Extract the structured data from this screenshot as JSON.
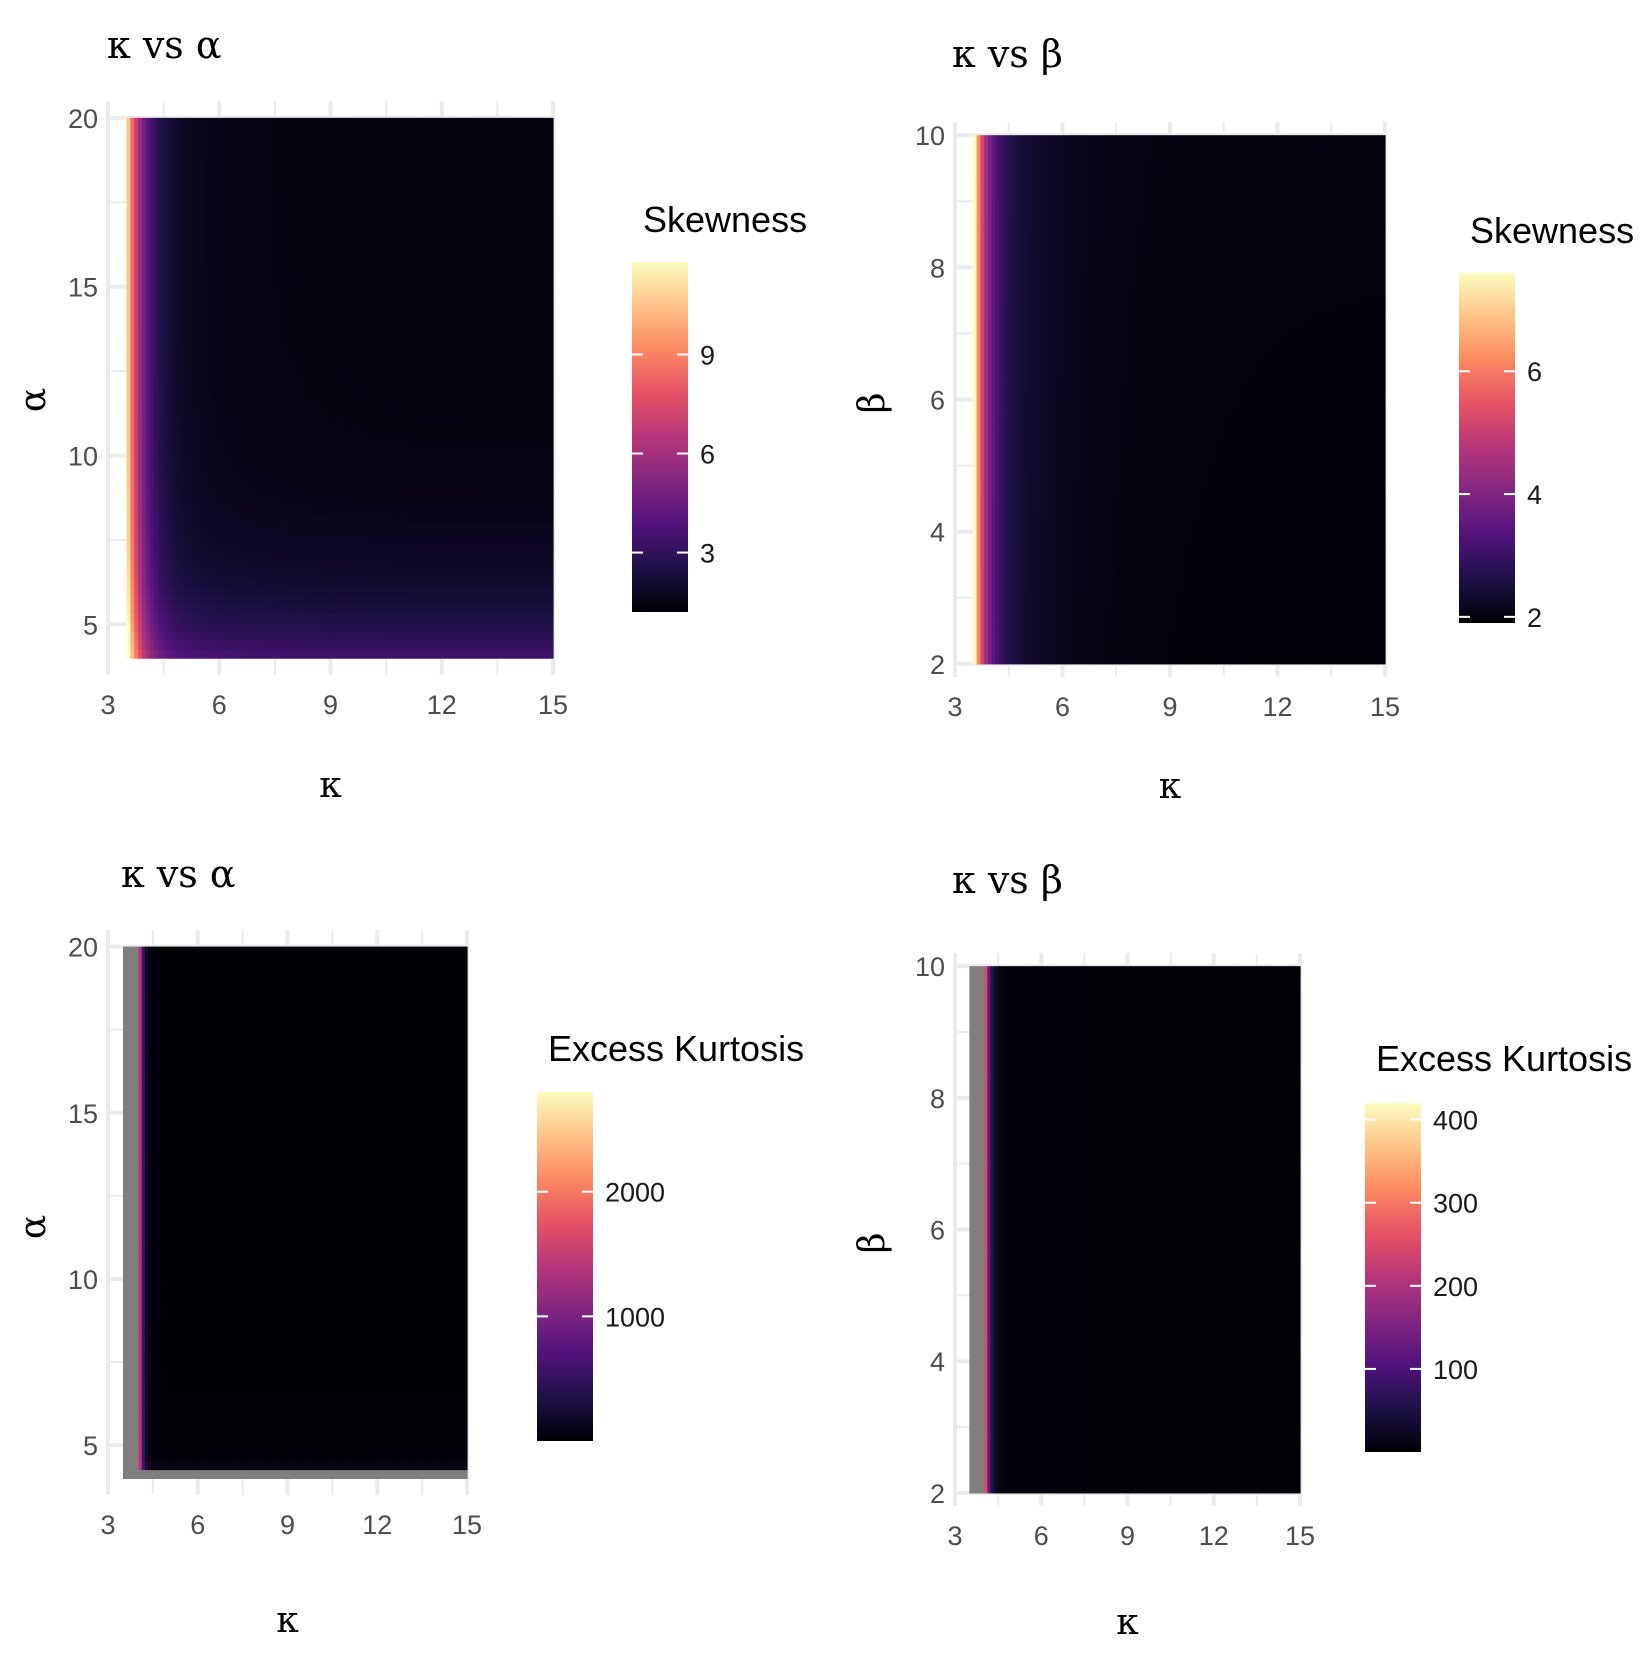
{
  "chart_data": [
    {
      "type": "heatmap",
      "title": "κ vs α",
      "xlabel": "κ",
      "ylabel": "α",
      "xlim": [
        3,
        15
      ],
      "ylim": [
        3.5,
        20.5
      ],
      "x_ticks": [
        3,
        6,
        9,
        12,
        15
      ],
      "y_ticks": [
        5,
        10,
        15,
        20
      ],
      "x_range": [
        3.5,
        15
      ],
      "y_range": [
        4,
        20
      ],
      "na_band_x": [],
      "fill": {
        "legend_title": "Skewness",
        "range": [
          1.2,
          11.8
        ],
        "breaks": [
          3,
          6,
          9
        ],
        "palette": "magma"
      },
      "grid": true
    },
    {
      "type": "heatmap",
      "title": "κ vs β",
      "xlabel": "κ",
      "ylabel": "β",
      "xlim": [
        3,
        15
      ],
      "ylim": [
        1.8,
        10.2
      ],
      "x_ticks": [
        3,
        6,
        9,
        12,
        15
      ],
      "y_ticks": [
        2,
        4,
        6,
        8,
        10
      ],
      "x_range": [
        3.5,
        15
      ],
      "y_range": [
        2,
        10
      ],
      "na_band_x": [],
      "fill": {
        "legend_title": "Skewness",
        "range": [
          1.9,
          7.6
        ],
        "breaks": [
          2,
          4,
          6
        ],
        "palette": "magma"
      },
      "grid": true
    },
    {
      "type": "heatmap",
      "title": "κ vs α",
      "xlabel": "κ",
      "ylabel": "α",
      "xlim": [
        3,
        15
      ],
      "ylim": [
        3.5,
        20.5
      ],
      "x_ticks": [
        3,
        6,
        9,
        12,
        15
      ],
      "y_ticks": [
        5,
        10,
        15,
        20
      ],
      "x_range": [
        3.5,
        15
      ],
      "y_range": [
        4,
        20
      ],
      "na_band_x": [
        3.5,
        4
      ],
      "fill": {
        "legend_title": "Excess Kurtosis",
        "range": [
          0,
          2800
        ],
        "breaks": [
          1000,
          2000
        ],
        "palette": "magma"
      },
      "grid": true
    },
    {
      "type": "heatmap",
      "title": "κ vs β",
      "xlabel": "κ",
      "ylabel": "β",
      "xlim": [
        3,
        15
      ],
      "ylim": [
        1.8,
        10.2
      ],
      "x_ticks": [
        3,
        6,
        9,
        12,
        15
      ],
      "y_ticks": [
        2,
        4,
        6,
        8,
        10
      ],
      "x_range": [
        3.5,
        15
      ],
      "y_range": [
        2,
        10
      ],
      "na_band_x": [
        3.5,
        4
      ],
      "fill": {
        "legend_title": "Excess Kurtosis",
        "range": [
          0,
          420
        ],
        "breaks": [
          100,
          200,
          300,
          400
        ],
        "palette": "magma"
      },
      "grid": true
    }
  ],
  "colors": {
    "panel_grid": "#ebebeb",
    "na_value": "#7f7f7f",
    "magma": [
      "#000004",
      "#1d1147",
      "#51127c",
      "#822681",
      "#b63679",
      "#e65164",
      "#fb8861",
      "#fec287",
      "#fcfdbf"
    ]
  }
}
